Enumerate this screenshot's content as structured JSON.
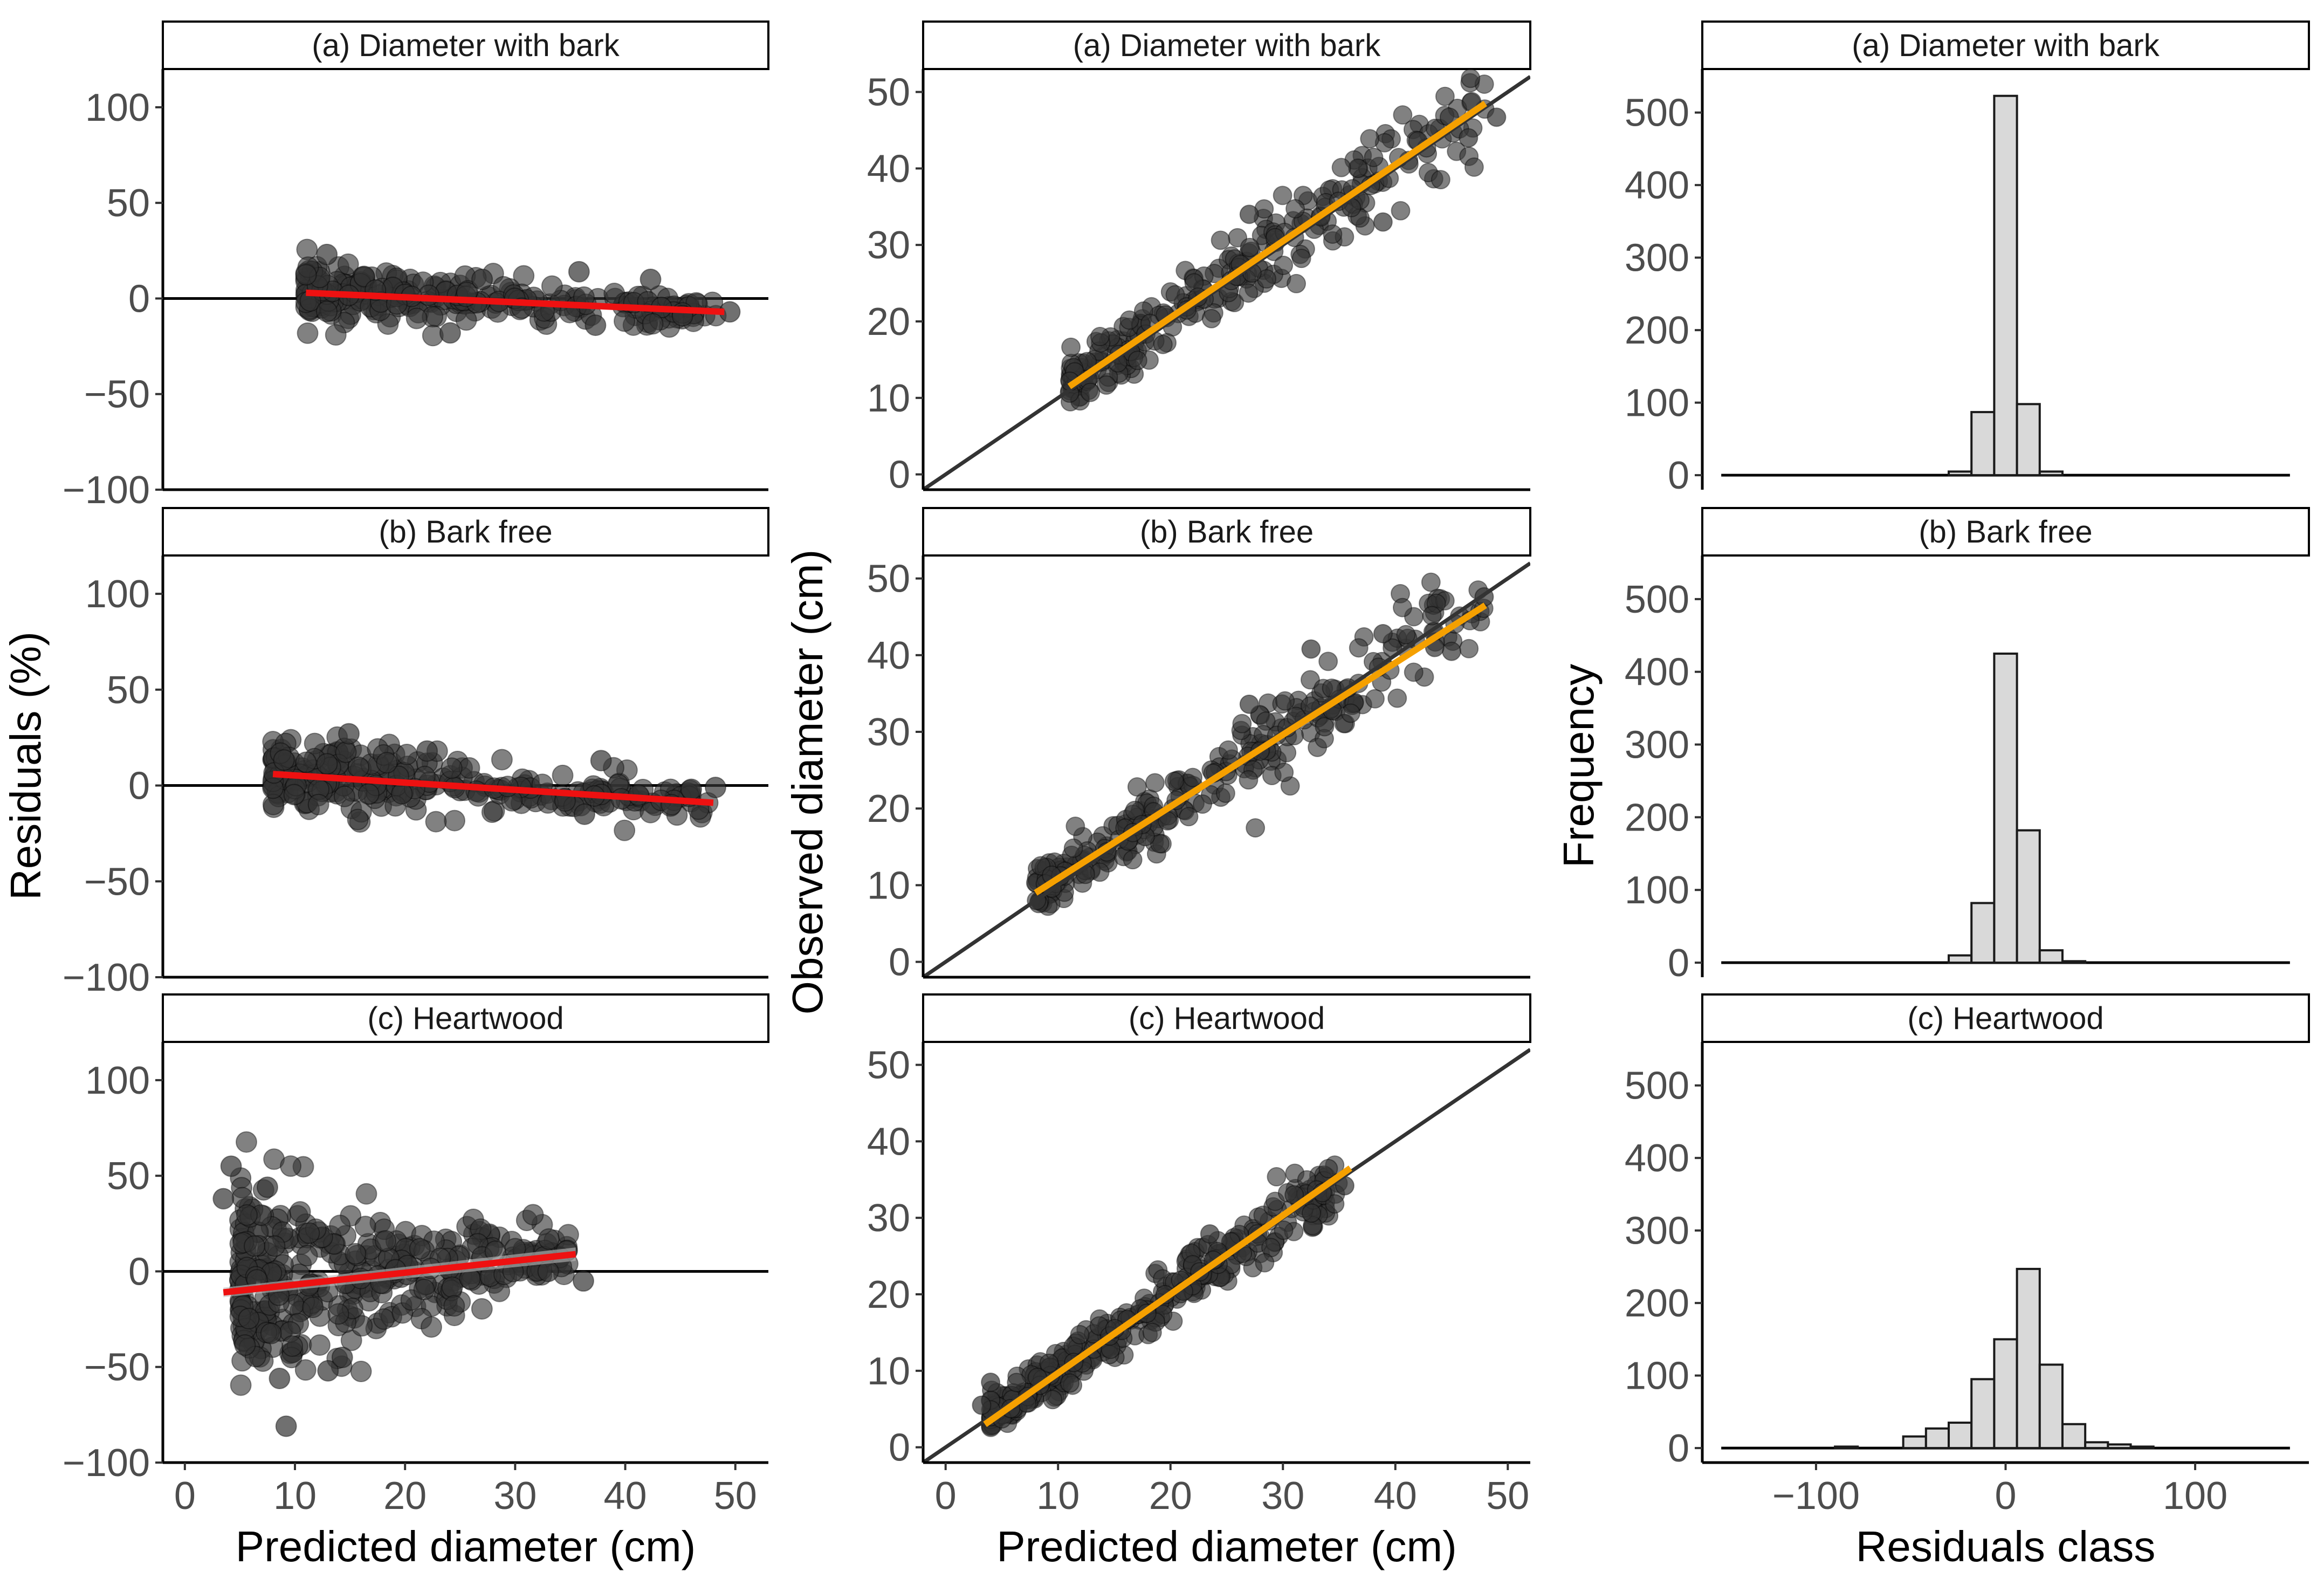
{
  "chart_data": [
    {
      "type": "scatter",
      "column": "residuals",
      "ylabel": "Residuals (%)",
      "xlabel": "Predicted diameter (cm)",
      "xlim": [
        -2,
        53
      ],
      "ylim": [
        -100,
        120
      ],
      "xticks": [
        0,
        10,
        20,
        30,
        40,
        50
      ],
      "yticks": [
        -100,
        -50,
        0,
        50,
        100
      ],
      "reference_line": "y = 0",
      "trend_color": "#ee1111",
      "point_color": "#333333",
      "panels": [
        {
          "title": "(a) Diameter with bark",
          "trend": {
            "x": [
              11,
              49
            ],
            "y": [
              3,
              -7
            ]
          },
          "cloud": {
            "x_range": [
              11,
              49
            ],
            "center": [
              3,
              -7
            ],
            "spread": [
              8,
              4
            ],
            "n": 260
          },
          "points": [
            {
              "x": 12.9,
              "y": 23
            },
            {
              "x": 45.2,
              "y": -9
            },
            {
              "x": 49.5,
              "y": -7
            },
            {
              "x": 35.8,
              "y": 14
            },
            {
              "x": 42.3,
              "y": 10
            },
            {
              "x": 24.1,
              "y": -18
            },
            {
              "x": 27.0,
              "y": 10
            },
            {
              "x": 37.3,
              "y": -14
            }
          ]
        },
        {
          "title": "(b) Bark free",
          "trend": {
            "x": [
              8,
              48
            ],
            "y": [
              6,
              -9
            ]
          },
          "cloud": {
            "x_range": [
              8,
              48
            ],
            "center": [
              6,
              -9
            ],
            "spread": [
              10,
              4
            ],
            "n": 280
          },
          "points": [
            {
              "x": 14.9,
              "y": 27
            },
            {
              "x": 46.0,
              "y": -2
            },
            {
              "x": 48.2,
              "y": -1
            },
            {
              "x": 44.2,
              "y": -10
            },
            {
              "x": 36.3,
              "y": -15
            },
            {
              "x": 37.8,
              "y": 13
            },
            {
              "x": 22.0,
              "y": 18
            },
            {
              "x": 41.2,
              "y": -5
            }
          ]
        },
        {
          "title": "(c) Heartwood",
          "trend": {
            "x": [
              3.5,
              35.5
            ],
            "y": [
              -11,
              9
            ]
          },
          "band": {
            "x": [
              3.5,
              35.5
            ],
            "half_width": [
              2.5,
              3.5
            ]
          },
          "cloud": {
            "x_range": [
              5,
              35
            ],
            "center": [
              -8,
              8
            ],
            "spread": [
              28,
              5
            ],
            "n": 380
          },
          "points": [
            {
              "x": 4.2,
              "y": 55
            },
            {
              "x": 3.5,
              "y": 38
            },
            {
              "x": 7.5,
              "y": 44
            },
            {
              "x": 9.2,
              "y": -81
            },
            {
              "x": 13.0,
              "y": -52
            },
            {
              "x": 14.3,
              "y": -45
            },
            {
              "x": 8.6,
              "y": -56
            },
            {
              "x": 36.2,
              "y": -5
            },
            {
              "x": 33.0,
              "y": 0
            }
          ]
        }
      ]
    },
    {
      "type": "scatter",
      "column": "observed_vs_predicted",
      "ylabel": "Observed diameter (cm)",
      "xlabel": "Predicted diameter (cm)",
      "xlim": [
        -2,
        52
      ],
      "ylim": [
        -2,
        53
      ],
      "xticks": [
        0,
        10,
        20,
        30,
        40,
        50
      ],
      "yticks": [
        0,
        10,
        20,
        30,
        40,
        50
      ],
      "identity_line": "y = x",
      "fit_color": "#f5a000",
      "point_color": "#333333",
      "panels": [
        {
          "title": "(a) Diameter with bark",
          "fit": {
            "x": [
              11,
              48
            ],
            "y": [
              11.5,
              48.5
            ]
          },
          "cloud": {
            "x_range": [
              11,
              48
            ],
            "slope": 1.0,
            "intercept": 0.5,
            "spread": 1.6,
            "n": 260
          },
          "points": [
            {
              "x": 44.8,
              "y": 46.7
            },
            {
              "x": 42.0,
              "y": 43.6
            },
            {
              "x": 49.0,
              "y": 46.7
            },
            {
              "x": 46.5,
              "y": 44.0
            },
            {
              "x": 38.9,
              "y": 33.0
            },
            {
              "x": 27.0,
              "y": 34.0
            }
          ]
        },
        {
          "title": "(b) Bark free",
          "fit": {
            "x": [
              8,
              48
            ],
            "y": [
              9,
              46.5
            ]
          },
          "cloud": {
            "x_range": [
              8,
              48
            ],
            "slope": 0.94,
            "intercept": 1.5,
            "spread": 1.5,
            "n": 280
          },
          "points": [
            {
              "x": 47.9,
              "y": 47.6
            },
            {
              "x": 38.9,
              "y": 42.8
            },
            {
              "x": 32.5,
              "y": 40.8
            },
            {
              "x": 45.0,
              "y": 40.5
            },
            {
              "x": 43.5,
              "y": 41.0
            },
            {
              "x": 27.0,
              "y": 33.6
            }
          ]
        },
        {
          "title": "(c) Heartwood",
          "fit": {
            "x": [
              3.5,
              36
            ],
            "y": [
              3,
              36.5
            ]
          },
          "cloud": {
            "x_range": [
              4,
              35
            ],
            "slope": 1.0,
            "intercept": 0.0,
            "spread": 1.4,
            "n": 380
          },
          "points": [
            {
              "x": 35.5,
              "y": 34.2
            },
            {
              "x": 33.5,
              "y": 33.3
            },
            {
              "x": 31.0,
              "y": 33.0
            },
            {
              "x": 23.5,
              "y": 27.9
            },
            {
              "x": 3.2,
              "y": 5.5
            },
            {
              "x": 4.0,
              "y": 8.5
            }
          ]
        }
      ]
    },
    {
      "type": "bar",
      "column": "histogram",
      "ylabel": "Frequency",
      "xlabel": "Residuals class",
      "xlim": [
        -160,
        160
      ],
      "ylim": [
        -20,
        560
      ],
      "xticks": [
        -100,
        0,
        100
      ],
      "yticks": [
        0,
        100,
        200,
        300,
        400,
        500
      ],
      "baseline_range": [
        -150,
        150
      ],
      "bin_width": 12,
      "bar_fill": "#d9d9d9",
      "bar_edge": "#1a1a1a",
      "panels": [
        {
          "title": "(a) Diameter with bark",
          "bins": [
            {
              "center": -24,
              "count": 5
            },
            {
              "center": -12,
              "count": 87
            },
            {
              "center": 0,
              "count": 523
            },
            {
              "center": 12,
              "count": 98
            },
            {
              "center": 24,
              "count": 5
            }
          ]
        },
        {
          "title": "(b) Bark free",
          "bins": [
            {
              "center": -24,
              "count": 10
            },
            {
              "center": -12,
              "count": 82
            },
            {
              "center": 0,
              "count": 425
            },
            {
              "center": 12,
              "count": 182
            },
            {
              "center": 24,
              "count": 17
            },
            {
              "center": 36,
              "count": 2
            }
          ]
        },
        {
          "title": "(c) Heartwood",
          "bins": [
            {
              "center": -84,
              "count": 2
            },
            {
              "center": -48,
              "count": 16
            },
            {
              "center": -36,
              "count": 27
            },
            {
              "center": -24,
              "count": 35
            },
            {
              "center": -12,
              "count": 95
            },
            {
              "center": 0,
              "count": 150
            },
            {
              "center": 12,
              "count": 247
            },
            {
              "center": 24,
              "count": 115
            },
            {
              "center": 36,
              "count": 33
            },
            {
              "center": 48,
              "count": 8
            },
            {
              "center": 60,
              "count": 5
            },
            {
              "center": 72,
              "count": 2
            }
          ]
        }
      ]
    }
  ]
}
